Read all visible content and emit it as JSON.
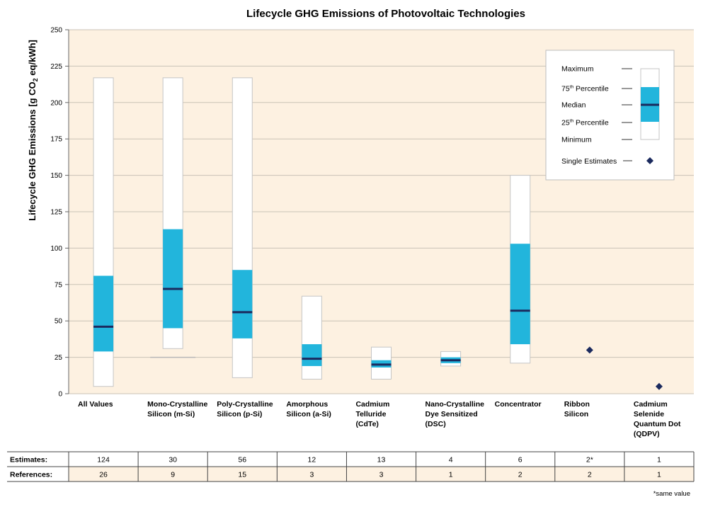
{
  "chart_data": {
    "type": "boxplot",
    "title": "Lifecycle GHG Emissions of Photovoltaic Technologies",
    "ylabel": "Lifecycle GHG Emissions [g CO2 eq/kWh]",
    "ylabel_parts": [
      "Lifecycle GHG Emissions [g CO",
      "2",
      " eq/kWh]"
    ],
    "ylim": [
      0,
      250
    ],
    "yticks": [
      0,
      25,
      50,
      75,
      100,
      125,
      150,
      175,
      200,
      225,
      250
    ],
    "grid": true,
    "plot_background": "#fdf1e1",
    "colors": {
      "iqr": "#22b5dc",
      "median": "#1b2a5e",
      "range": "#ffffff",
      "marker": "#1b2a5e"
    },
    "categories": [
      {
        "label": [
          "All Values"
        ],
        "box": {
          "min": 5,
          "q1": 29,
          "median": 46,
          "q3": 81,
          "max": 217
        }
      },
      {
        "label": [
          "Mono-Crystalline",
          "Silicon (m-Si)"
        ],
        "box": {
          "min": 31,
          "q1": 45,
          "median": 72,
          "q3": 113,
          "max": 217
        },
        "extra_line": 25
      },
      {
        "label": [
          "Poly-Crystalline",
          "Silicon (p-Si)"
        ],
        "box": {
          "min": 11,
          "q1": 38,
          "median": 56,
          "q3": 85,
          "max": 217
        }
      },
      {
        "label": [
          "Amorphous",
          "Silicon (a-Si)"
        ],
        "box": {
          "min": 10,
          "q1": 19,
          "median": 24,
          "q3": 34,
          "max": 67
        }
      },
      {
        "label": [
          "Cadmium",
          "Telluride",
          "(CdTe)"
        ],
        "box": {
          "min": 10,
          "q1": 18,
          "median": 20,
          "q3": 23,
          "max": 32
        }
      },
      {
        "label": [
          "Nano-Crystalline",
          "Dye Sensitized",
          "(DSC)"
        ],
        "box": {
          "min": 19,
          "q1": 21,
          "median": 23,
          "q3": 25,
          "max": 29
        }
      },
      {
        "label": [
          "Concentrator"
        ],
        "box": {
          "min": 21,
          "q1": 34,
          "median": 57,
          "q3": 103,
          "max": 150
        }
      },
      {
        "label": [
          "Ribbon",
          "Silicon"
        ],
        "single": [
          30
        ]
      },
      {
        "label": [
          "Cadmium",
          "Selenide",
          "Quantum Dot",
          "(QDPV)"
        ],
        "single": [
          5
        ]
      }
    ],
    "legend": {
      "position": "top-right",
      "items": [
        "Maximum",
        "75",
        "Median",
        "25",
        "Minimum"
      ],
      "p75_label": {
        "num": "75",
        "sup": "th",
        "text": " Percentile"
      },
      "p25_label": {
        "num": "25",
        "sup": "th",
        "text": " Percentile"
      },
      "single": "Single Estimates"
    },
    "table": {
      "rows": [
        {
          "label": "Estimates:",
          "values": [
            "124",
            "30",
            "56",
            "12",
            "13",
            "4",
            "6",
            "2*",
            "1"
          ]
        },
        {
          "label": "References:",
          "values": [
            "26",
            "9",
            "15",
            "3",
            "3",
            "1",
            "2",
            "2",
            "1"
          ]
        }
      ],
      "footnote": "*same value"
    }
  }
}
